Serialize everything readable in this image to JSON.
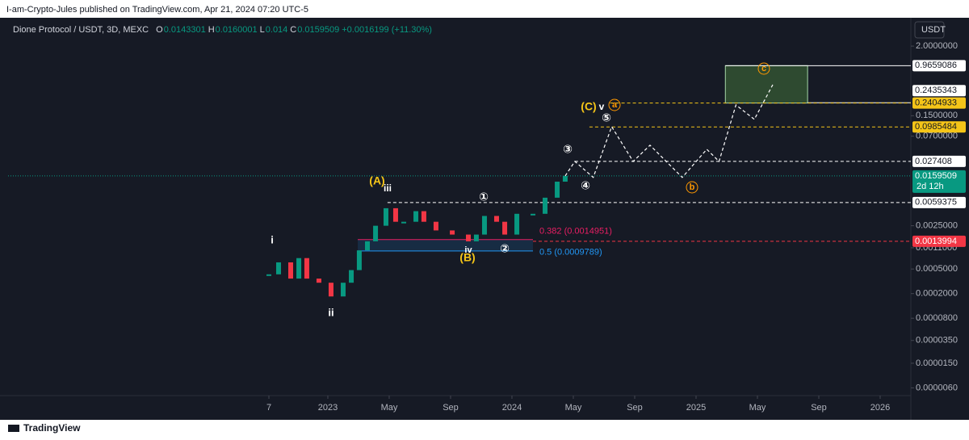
{
  "banner": "I-am-Crypto-Jules published on TradingView.com, Apr 21, 2024 07:20 UTC-5",
  "footer": {
    "brand": "TradingView"
  },
  "chart_data": {
    "type": "candlestick",
    "title": "Dione Protocol / USDT, 3D, MEXC",
    "ohlc": {
      "o_label": "O",
      "open": 0.0143301,
      "h_label": "H",
      "high": 0.0160001,
      "l_label": "L",
      "low": 0.014,
      "c_label": "C",
      "close": 0.0159509,
      "change": "+0.0016199 (+11.30%)"
    },
    "currency": "USDT",
    "log_scale": true,
    "up_color": "#089981",
    "down_color": "#f23645",
    "xlim": [
      -20.84,
      38.0
    ],
    "ylim": [
      4.5e-06,
      5.74
    ],
    "xticks": [
      {
        "value": -3.84,
        "label": "7"
      },
      {
        "value": 0,
        "label": "2023"
      },
      {
        "value": 4,
        "label": "May"
      },
      {
        "value": 8,
        "label": "Sep"
      },
      {
        "value": 12,
        "label": "2024"
      },
      {
        "value": 16,
        "label": "May"
      },
      {
        "value": 20,
        "label": "Sep"
      },
      {
        "value": 24,
        "label": "2025"
      },
      {
        "value": 28,
        "label": "May"
      },
      {
        "value": 32,
        "label": "Sep"
      },
      {
        "value": 36,
        "label": "2026"
      }
    ],
    "yticks": [
      {
        "value": 2,
        "label": "2.0000000"
      },
      {
        "value": 0.15,
        "label": "0.1500000"
      },
      {
        "value": 0.07,
        "label": "0.0700000"
      },
      {
        "value": 0.0025,
        "label": "0.0025000"
      },
      {
        "value": 0.0011,
        "label": "0.0011000"
      },
      {
        "value": 0.0005,
        "label": "0.0005000"
      },
      {
        "value": 0.0002,
        "label": "0.0002000"
      },
      {
        "value": 8e-05,
        "label": "0.0000800"
      },
      {
        "value": 3.5e-05,
        "label": "0.0000350"
      },
      {
        "value": 1.5e-05,
        "label": "0.0000150"
      },
      {
        "value": 6e-06,
        "label": "0.0000060"
      }
    ],
    "x": [
      -3.84,
      -3.21,
      -2.42,
      -1.89,
      -1.37,
      -0.58,
      0.21,
      1.0,
      1.53,
      2.05,
      2.58,
      3.11,
      3.79,
      4.42,
      4.95,
      5.74,
      6.26,
      7.05,
      8.11,
      9.16,
      9.68,
      10.21,
      11.0,
      11.53,
      12.32,
      13.37,
      14.16,
      14.95,
      15.47
    ],
    "series": [
      {
        "name": "close",
        "values": [
          0.00041,
          0.00064,
          0.00035,
          0.00075,
          0.00035,
          0.0003,
          0.00018,
          0.0003,
          0.00048,
          0.001,
          0.0014,
          0.0025,
          0.0048,
          0.0029,
          0.0029,
          0.0043,
          0.0029,
          0.0021,
          0.0018,
          0.0014,
          0.0018,
          0.0036,
          0.0029,
          0.0018,
          0.0039,
          0.0039,
          0.0071,
          0.0129,
          0.0159509
        ]
      }
    ],
    "projection": {
      "color": "#ffffff",
      "x": [
        15.47,
        16.1,
        17.3,
        18.5,
        19.9,
        21.0,
        23.1,
        24.7,
        25.5,
        26.6,
        27.8,
        29.0
      ],
      "values": [
        0.0159509,
        0.0274,
        0.0151,
        0.0998,
        0.0274,
        0.05,
        0.0151,
        0.043,
        0.0274,
        0.224,
        0.131,
        0.475
      ]
    },
    "target_box": {
      "low": 0.2404933,
      "high": 0.9659086,
      "x": [
        25.91,
        31.27
      ],
      "color": "#2e4a30"
    },
    "fib_box": {
      "x": [
        1.95,
        13.37
      ],
      "levels": [
        {
          "value": 0.0014951,
          "label": "0.382 (0.0014951)",
          "color": "#e91e63"
        },
        {
          "value": 0.0009789,
          "label": "0.5 (0.0009789)",
          "color": "#2196f3"
        }
      ]
    },
    "price_levels": [
      {
        "value": 0.9659086,
        "color": "#ffffff",
        "from": 25.91,
        "dash": false
      },
      {
        "value": 0.2435343,
        "color": "#ffffff",
        "from": 31.27,
        "dash": false
      },
      {
        "value": 0.2404933,
        "color": "#f5c518",
        "from": 18.4,
        "dash": true
      },
      {
        "value": 0.0985484,
        "color": "#f5c518",
        "from": 17.05,
        "dash": true
      },
      {
        "value": 0.027408,
        "color": "#ffffff",
        "from": 16.1,
        "dash": true
      },
      {
        "value": 0.0159509,
        "color": "#089981",
        "from": -20.84,
        "dash": true
      },
      {
        "value": 0.0059375,
        "color": "#ffffff",
        "from": 3.89,
        "dash": true
      },
      {
        "value": 0.0013994,
        "color": "#f23645",
        "from": 13.37,
        "dash": true
      }
    ],
    "countdown": "2d 12h",
    "annotations": [
      "(A)",
      "iii",
      "i",
      "ii",
      "iv",
      "(B)",
      "①",
      "②",
      "③",
      "④",
      "⑤",
      "(C)",
      "v",
      "a",
      "b",
      "c"
    ]
  }
}
